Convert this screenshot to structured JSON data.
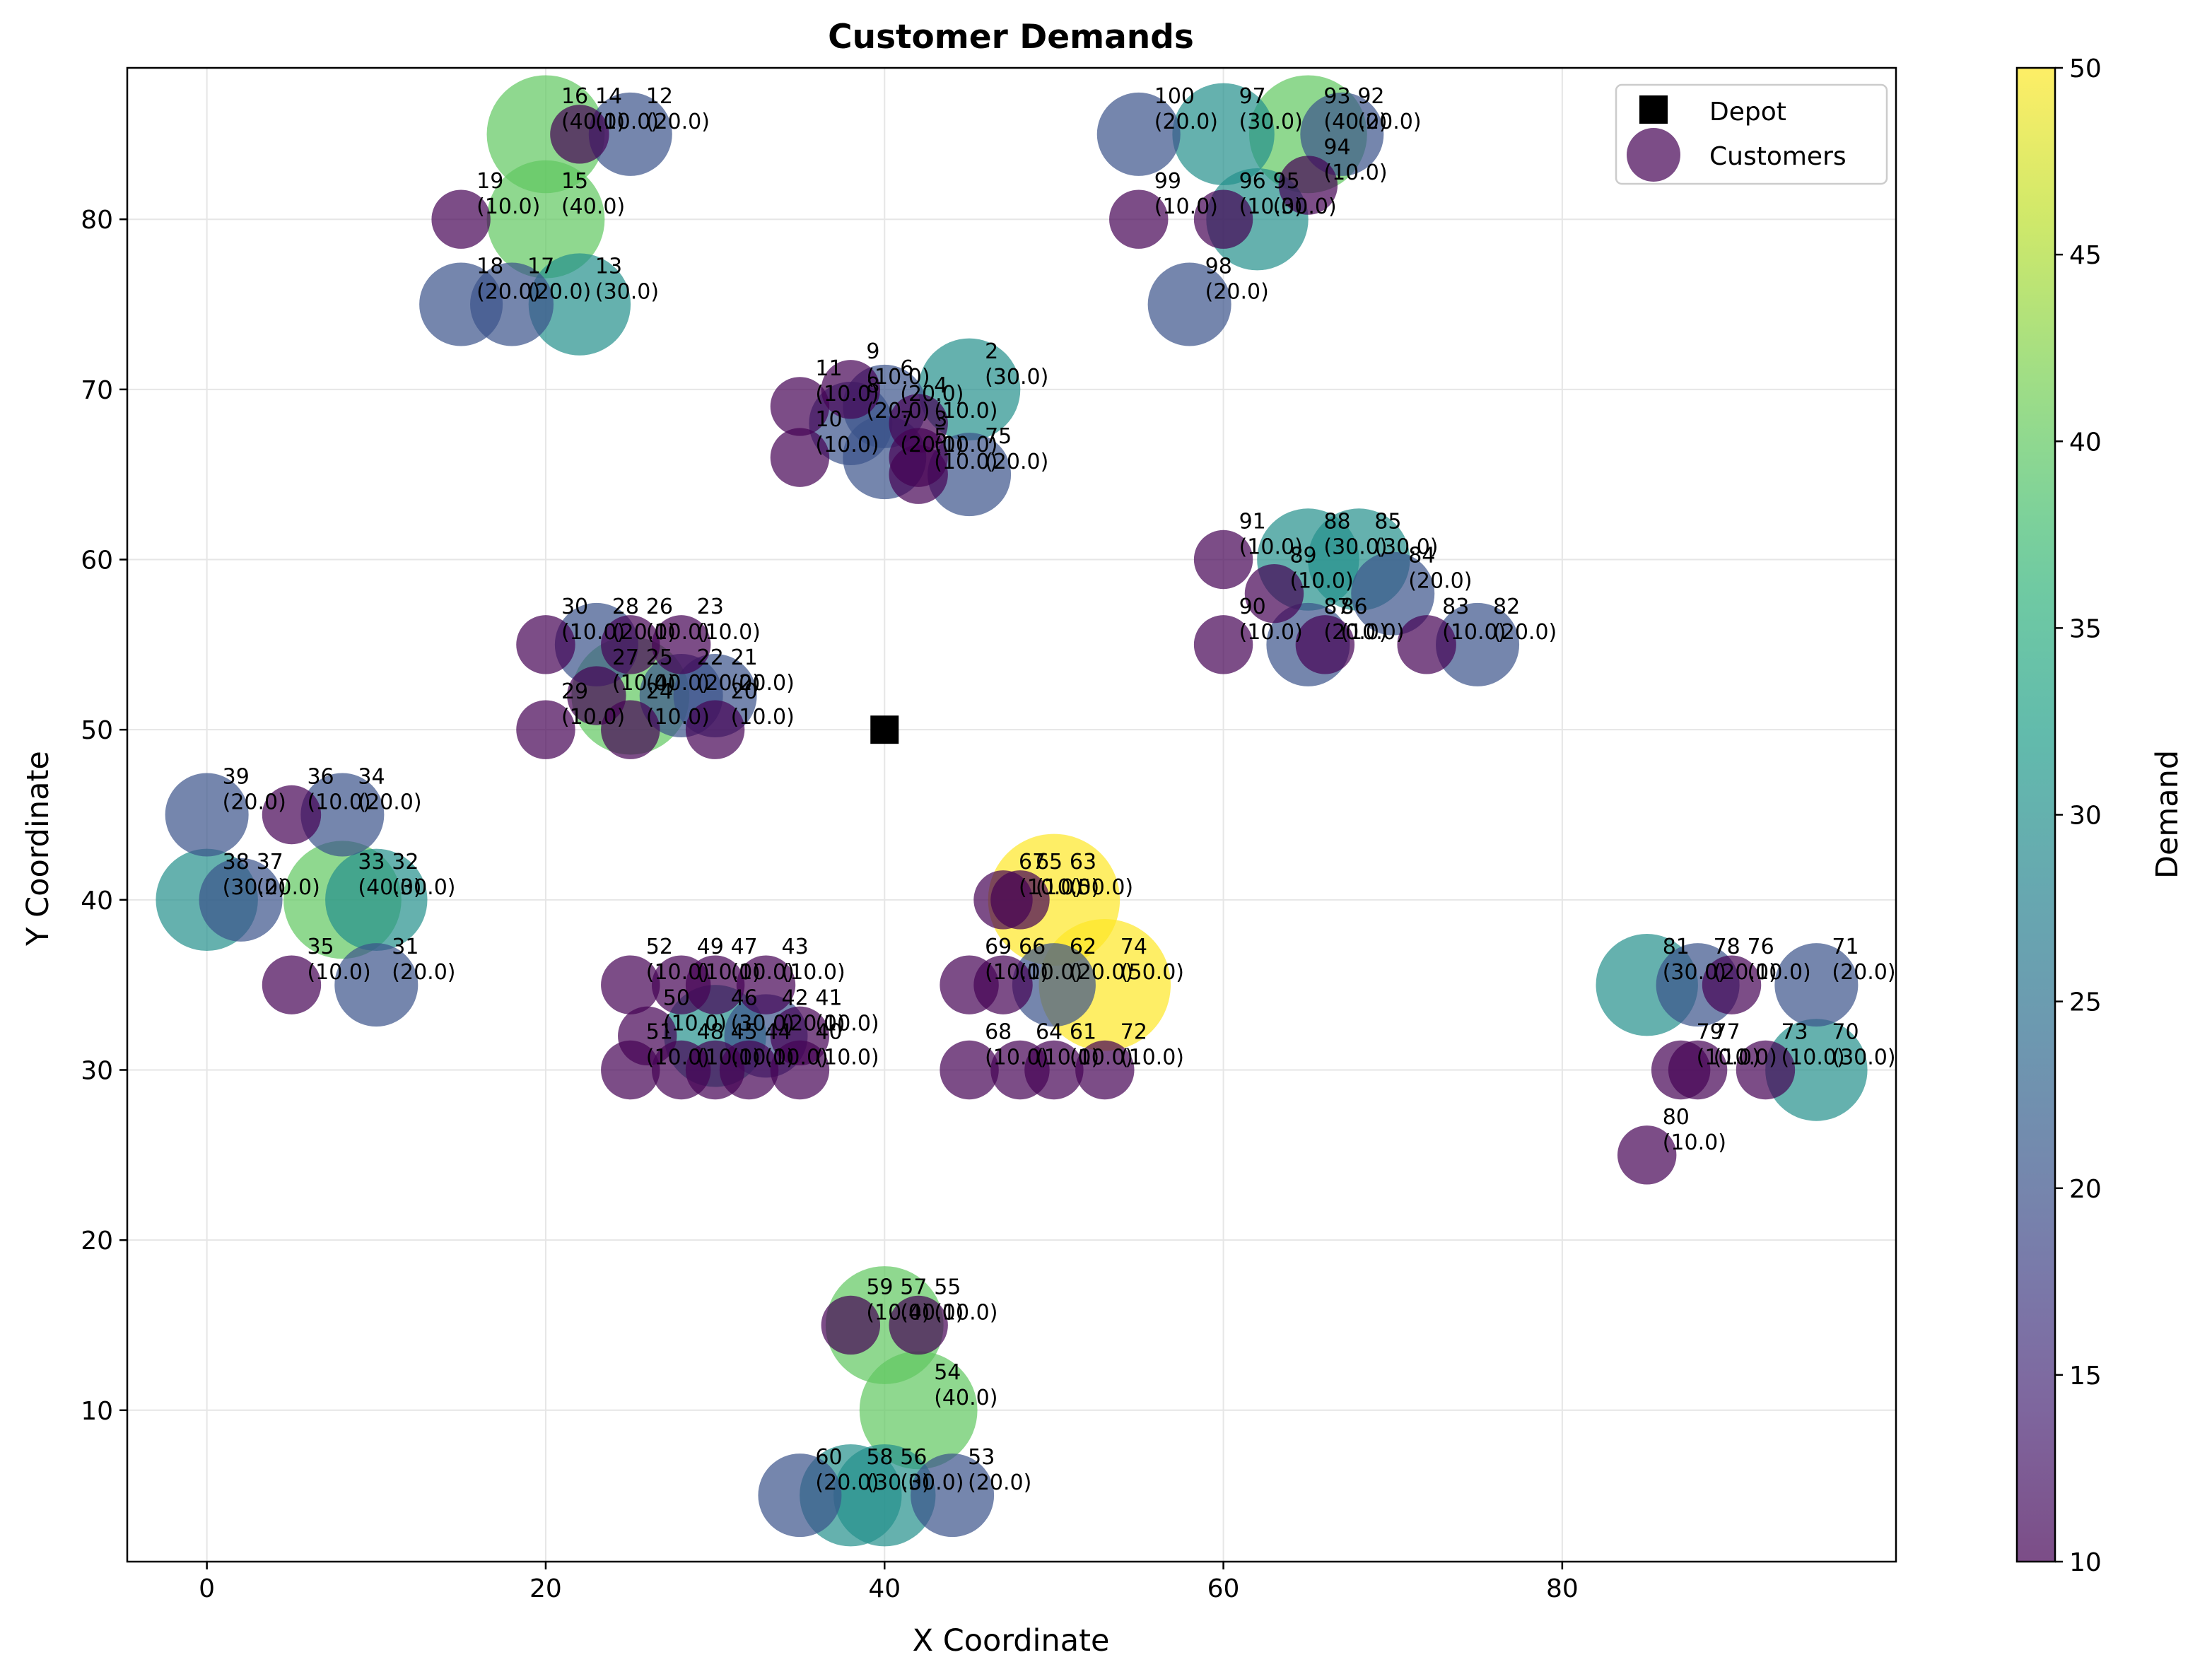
{
  "chart_data": {
    "type": "scatter",
    "title": "Customer Demands",
    "xlabel": "X Coordinate",
    "ylabel": "Y Coordinate",
    "xlim": [
      -4.7,
      99.7
    ],
    "ylim": [
      1.1,
      88.9
    ],
    "xticks": [
      "0",
      "20",
      "40",
      "60",
      "80"
    ],
    "xtick_values": [
      0,
      20,
      40,
      60,
      80
    ],
    "yticks": [
      "10",
      "20",
      "30",
      "40",
      "50",
      "60",
      "70",
      "80"
    ],
    "ytick_values": [
      10,
      20,
      30,
      40,
      50,
      60,
      70,
      80
    ],
    "grid": true,
    "legend": {
      "placement": "top-right",
      "entries": [
        {
          "name": "Depot",
          "marker": "square",
          "color": "#000000"
        },
        {
          "name": "Customers",
          "marker": "circle",
          "color": "#440154"
        }
      ]
    },
    "colorbar": {
      "label": "Demand",
      "min": 10,
      "max": 50,
      "ticks": [
        "10",
        "15",
        "20",
        "25",
        "30",
        "35",
        "40",
        "45",
        "50"
      ],
      "tick_values": [
        10,
        15,
        20,
        25,
        30,
        35,
        40,
        45,
        50
      ],
      "colormap": "viridis"
    },
    "depot": {
      "x": 40,
      "y": 50
    },
    "customers": [
      {
        "id": "2",
        "x": 45,
        "y": 70,
        "demand": 30,
        "label": "(30.0)"
      },
      {
        "id": "3",
        "x": 42,
        "y": 66,
        "demand": 10,
        "label": "(10.0)"
      },
      {
        "id": "4",
        "x": 42,
        "y": 68,
        "demand": 10,
        "label": "(10.0)"
      },
      {
        "id": "5",
        "x": 42,
        "y": 65,
        "demand": 10,
        "label": "(10.0)"
      },
      {
        "id": "6",
        "x": 40,
        "y": 69,
        "demand": 20,
        "label": "(20.0)"
      },
      {
        "id": "7",
        "x": 40,
        "y": 66,
        "demand": 20,
        "label": "(20.0)"
      },
      {
        "id": "8",
        "x": 38,
        "y": 68,
        "demand": 20,
        "label": "(20.0)"
      },
      {
        "id": "9",
        "x": 38,
        "y": 70,
        "demand": 10,
        "label": "(10.0)"
      },
      {
        "id": "10",
        "x": 35,
        "y": 66,
        "demand": 10,
        "label": "(10.0)"
      },
      {
        "id": "11",
        "x": 35,
        "y": 69,
        "demand": 10,
        "label": "(10.0)"
      },
      {
        "id": "12",
        "x": 25,
        "y": 85,
        "demand": 20,
        "label": "(20.0)"
      },
      {
        "id": "13",
        "x": 22,
        "y": 75,
        "demand": 30,
        "label": "(30.0)"
      },
      {
        "id": "14",
        "x": 22,
        "y": 85,
        "demand": 10,
        "label": "(10.0)"
      },
      {
        "id": "15",
        "x": 20,
        "y": 80,
        "demand": 40,
        "label": "(40.0)"
      },
      {
        "id": "16",
        "x": 20,
        "y": 85,
        "demand": 40,
        "label": "(40.0)"
      },
      {
        "id": "17",
        "x": 18,
        "y": 75,
        "demand": 20,
        "label": "(20.0)"
      },
      {
        "id": "18",
        "x": 15,
        "y": 75,
        "demand": 20,
        "label": "(20.0)"
      },
      {
        "id": "19",
        "x": 15,
        "y": 80,
        "demand": 10,
        "label": "(10.0)"
      },
      {
        "id": "20",
        "x": 30,
        "y": 50,
        "demand": 10,
        "label": "(10.0)"
      },
      {
        "id": "21",
        "x": 30,
        "y": 52,
        "demand": 20,
        "label": "(20.0)"
      },
      {
        "id": "22",
        "x": 28,
        "y": 52,
        "demand": 20,
        "label": "(20.0)"
      },
      {
        "id": "23",
        "x": 28,
        "y": 55,
        "demand": 10,
        "label": "(10.0)"
      },
      {
        "id": "24",
        "x": 25,
        "y": 50,
        "demand": 10,
        "label": "(10.0)"
      },
      {
        "id": "25",
        "x": 25,
        "y": 52,
        "demand": 40,
        "label": "(40.0)"
      },
      {
        "id": "26",
        "x": 25,
        "y": 55,
        "demand": 10,
        "label": "(10.0)"
      },
      {
        "id": "27",
        "x": 23,
        "y": 52,
        "demand": 10,
        "label": "(10.0)"
      },
      {
        "id": "28",
        "x": 23,
        "y": 55,
        "demand": 20,
        "label": "(20.0)"
      },
      {
        "id": "29",
        "x": 20,
        "y": 50,
        "demand": 10,
        "label": "(10.0)"
      },
      {
        "id": "30",
        "x": 20,
        "y": 55,
        "demand": 10,
        "label": "(10.0)"
      },
      {
        "id": "31",
        "x": 10,
        "y": 35,
        "demand": 20,
        "label": "(20.0)"
      },
      {
        "id": "32",
        "x": 10,
        "y": 40,
        "demand": 30,
        "label": "(30.0)"
      },
      {
        "id": "33",
        "x": 8,
        "y": 40,
        "demand": 40,
        "label": "(40.0)"
      },
      {
        "id": "34",
        "x": 8,
        "y": 45,
        "demand": 20,
        "label": "(20.0)"
      },
      {
        "id": "35",
        "x": 5,
        "y": 35,
        "demand": 10,
        "label": "(10.0)"
      },
      {
        "id": "36",
        "x": 5,
        "y": 45,
        "demand": 10,
        "label": "(10.0)"
      },
      {
        "id": "37",
        "x": 2,
        "y": 40,
        "demand": 20,
        "label": "(20.0)"
      },
      {
        "id": "38",
        "x": 0,
        "y": 40,
        "demand": 30,
        "label": "(30.0)"
      },
      {
        "id": "39",
        "x": 0,
        "y": 45,
        "demand": 20,
        "label": "(20.0)"
      },
      {
        "id": "40",
        "x": 35,
        "y": 30,
        "demand": 10,
        "label": "(10.0)"
      },
      {
        "id": "41",
        "x": 35,
        "y": 32,
        "demand": 10,
        "label": "(10.0)"
      },
      {
        "id": "42",
        "x": 33,
        "y": 32,
        "demand": 20,
        "label": "(20.0)"
      },
      {
        "id": "43",
        "x": 33,
        "y": 35,
        "demand": 10,
        "label": "(10.0)"
      },
      {
        "id": "44",
        "x": 32,
        "y": 30,
        "demand": 10,
        "label": "(10.0)"
      },
      {
        "id": "45",
        "x": 30,
        "y": 30,
        "demand": 10,
        "label": "(10.0)"
      },
      {
        "id": "46",
        "x": 30,
        "y": 32,
        "demand": 30,
        "label": "(30.0)"
      },
      {
        "id": "47",
        "x": 30,
        "y": 35,
        "demand": 10,
        "label": "(10.0)"
      },
      {
        "id": "48",
        "x": 28,
        "y": 30,
        "demand": 10,
        "label": "(10.0)"
      },
      {
        "id": "49",
        "x": 28,
        "y": 35,
        "demand": 10,
        "label": "(10.0)"
      },
      {
        "id": "50",
        "x": 26,
        "y": 32,
        "demand": 10,
        "label": "(10.0)"
      },
      {
        "id": "51",
        "x": 25,
        "y": 30,
        "demand": 10,
        "label": "(10.0)"
      },
      {
        "id": "52",
        "x": 25,
        "y": 35,
        "demand": 10,
        "label": "(10.0)"
      },
      {
        "id": "53",
        "x": 44,
        "y": 5,
        "demand": 20,
        "label": "(20.0)"
      },
      {
        "id": "54",
        "x": 42,
        "y": 10,
        "demand": 40,
        "label": "(40.0)"
      },
      {
        "id": "55",
        "x": 42,
        "y": 15,
        "demand": 10,
        "label": "(10.0)"
      },
      {
        "id": "56",
        "x": 40,
        "y": 5,
        "demand": 30,
        "label": "(30.0)"
      },
      {
        "id": "57",
        "x": 40,
        "y": 15,
        "demand": 40,
        "label": "(40.0)"
      },
      {
        "id": "58",
        "x": 38,
        "y": 5,
        "demand": 30,
        "label": "(30.0)"
      },
      {
        "id": "59",
        "x": 38,
        "y": 15,
        "demand": 10,
        "label": "(10.0)"
      },
      {
        "id": "60",
        "x": 35,
        "y": 5,
        "demand": 20,
        "label": "(20.0)"
      },
      {
        "id": "61",
        "x": 50,
        "y": 30,
        "demand": 10,
        "label": "(10.0)"
      },
      {
        "id": "62",
        "x": 50,
        "y": 35,
        "demand": 20,
        "label": "(20.0)"
      },
      {
        "id": "63",
        "x": 50,
        "y": 40,
        "demand": 50,
        "label": "(50.0)"
      },
      {
        "id": "64",
        "x": 48,
        "y": 30,
        "demand": 10,
        "label": "(10.0)"
      },
      {
        "id": "65",
        "x": 48,
        "y": 40,
        "demand": 10,
        "label": "(10.0)"
      },
      {
        "id": "66",
        "x": 47,
        "y": 35,
        "demand": 10,
        "label": "(10.0)"
      },
      {
        "id": "67",
        "x": 47,
        "y": 40,
        "demand": 10,
        "label": "(10.0)"
      },
      {
        "id": "68",
        "x": 45,
        "y": 30,
        "demand": 10,
        "label": "(10.0)"
      },
      {
        "id": "69",
        "x": 45,
        "y": 35,
        "demand": 10,
        "label": "(10.0)"
      },
      {
        "id": "70",
        "x": 95,
        "y": 30,
        "demand": 30,
        "label": "(30.0)"
      },
      {
        "id": "71",
        "x": 95,
        "y": 35,
        "demand": 20,
        "label": "(20.0)"
      },
      {
        "id": "72",
        "x": 53,
        "y": 30,
        "demand": 10,
        "label": "(10.0)"
      },
      {
        "id": "73",
        "x": 92,
        "y": 30,
        "demand": 10,
        "label": "(10.0)"
      },
      {
        "id": "74",
        "x": 53,
        "y": 35,
        "demand": 50,
        "label": "(50.0)"
      },
      {
        "id": "75",
        "x": 45,
        "y": 65,
        "demand": 20,
        "label": "(20.0)"
      },
      {
        "id": "76",
        "x": 90,
        "y": 35,
        "demand": 10,
        "label": "(10.0)"
      },
      {
        "id": "77",
        "x": 88,
        "y": 30,
        "demand": 10,
        "label": "(10.0)"
      },
      {
        "id": "78",
        "x": 88,
        "y": 35,
        "demand": 20,
        "label": "(20.0)"
      },
      {
        "id": "79",
        "x": 87,
        "y": 30,
        "demand": 10,
        "label": "(10.0)"
      },
      {
        "id": "80",
        "x": 85,
        "y": 25,
        "demand": 10,
        "label": "(10.0)"
      },
      {
        "id": "81",
        "x": 85,
        "y": 35,
        "demand": 30,
        "label": "(30.0)"
      },
      {
        "id": "82",
        "x": 75,
        "y": 55,
        "demand": 20,
        "label": "(20.0)"
      },
      {
        "id": "83",
        "x": 72,
        "y": 55,
        "demand": 10,
        "label": "(10.0)"
      },
      {
        "id": "84",
        "x": 70,
        "y": 58,
        "demand": 20,
        "label": "(20.0)"
      },
      {
        "id": "85",
        "x": 68,
        "y": 60,
        "demand": 30,
        "label": "(30.0)"
      },
      {
        "id": "86",
        "x": 66,
        "y": 55,
        "demand": 10,
        "label": "(10.0)"
      },
      {
        "id": "87",
        "x": 65,
        "y": 55,
        "demand": 20,
        "label": "(20.0)"
      },
      {
        "id": "88",
        "x": 65,
        "y": 60,
        "demand": 30,
        "label": "(30.0)"
      },
      {
        "id": "89",
        "x": 63,
        "y": 58,
        "demand": 10,
        "label": "(10.0)"
      },
      {
        "id": "90",
        "x": 60,
        "y": 55,
        "demand": 10,
        "label": "(10.0)"
      },
      {
        "id": "91",
        "x": 60,
        "y": 60,
        "demand": 10,
        "label": "(10.0)"
      },
      {
        "id": "92",
        "x": 67,
        "y": 85,
        "demand": 20,
        "label": "(20.0)"
      },
      {
        "id": "93",
        "x": 65,
        "y": 85,
        "demand": 40,
        "label": "(40.0)"
      },
      {
        "id": "94",
        "x": 65,
        "y": 82,
        "demand": 10,
        "label": "(10.0)"
      },
      {
        "id": "95",
        "x": 62,
        "y": 80,
        "demand": 30,
        "label": "(30.0)"
      },
      {
        "id": "96",
        "x": 60,
        "y": 80,
        "demand": 10,
        "label": "(10.0)"
      },
      {
        "id": "97",
        "x": 60,
        "y": 85,
        "demand": 30,
        "label": "(30.0)"
      },
      {
        "id": "98",
        "x": 58,
        "y": 75,
        "demand": 20,
        "label": "(20.0)"
      },
      {
        "id": "99",
        "x": 55,
        "y": 80,
        "demand": 10,
        "label": "(10.0)"
      },
      {
        "id": "100",
        "x": 55,
        "y": 85,
        "demand": 20,
        "label": "(20.0)"
      }
    ]
  }
}
